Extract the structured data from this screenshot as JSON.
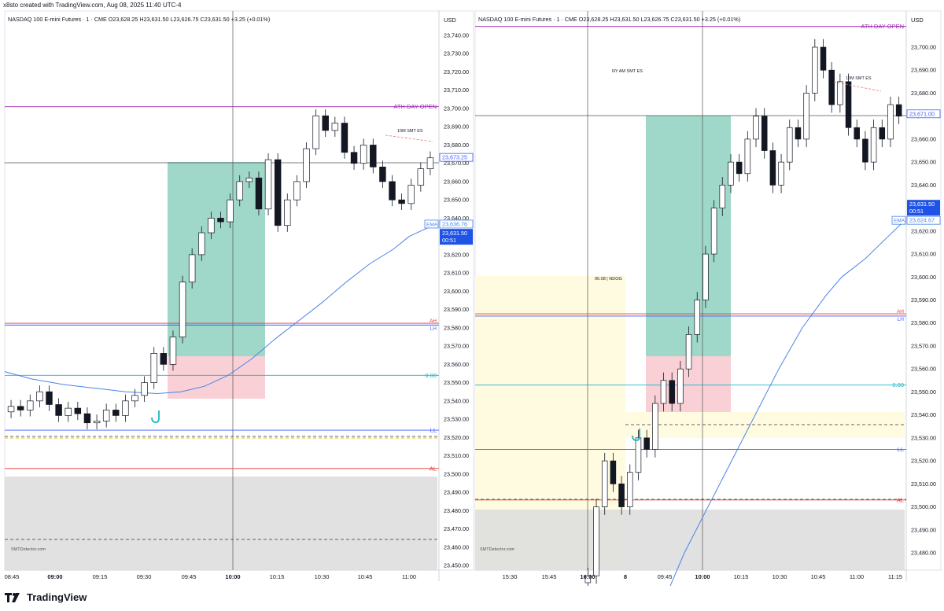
{
  "header_text": "x8sto created with TradingView.com, Aug 08, 2025 11:40 UTC-4",
  "footer_brand": "TradingView",
  "colors": {
    "long_zone": "#7fc9b7",
    "stop_zone": "#f9d0d6",
    "fvg_yellow": "#fffbe0",
    "gray_zone": "#dcdcdc",
    "ema_line": "#4a84e8",
    "zero_line": "#1cb5c9",
    "ll_line": "#3d5afe",
    "al_line": "#e53935",
    "candle_up": "#131722",
    "candle_down": "#131722",
    "last_price_bg": "#1e53e5"
  },
  "chart_data": [
    {
      "type": "candlestick",
      "title": "NASDAQ 100 E-mini Futures · 1 · CME",
      "ohlc_text": "O23,628.25  H23,631.50  L23,626.75  C23,631.50  +3.25 (+0.01%)",
      "currency": "USD",
      "x_ticks": [
        "08:45",
        "09:00",
        "09:15",
        "09:30",
        "09:45",
        "10:00",
        "10:15",
        "10:30",
        "10:45",
        "11:00"
      ],
      "x_ticks_bold": [
        "09:00",
        "10:00"
      ],
      "y_ticks": [
        "23,740.00",
        "23,730.00",
        "23,720.00",
        "23,710.00",
        "23,700.00",
        "23,690.00",
        "23,680.00",
        "23,670.00",
        "23,660.00",
        "23,650.00",
        "23,640.00",
        "23,630.00",
        "23,620.00",
        "23,610.00",
        "23,600.00",
        "23,590.00",
        "23,580.00",
        "23,570.00",
        "23,560.00",
        "23,550.00",
        "23,540.00",
        "23,530.00",
        "23,520.00",
        "23,510.00",
        "23,500.00",
        "23,490.00",
        "23,480.00",
        "23,470.00",
        "23,460.00",
        "23,450.00"
      ],
      "ylim": [
        23447,
        23745
      ],
      "levels": [
        {
          "label": "ATH DAY OPEN",
          "value": 23701,
          "color": "#9c27b0"
        },
        {
          "label": "AH",
          "value": 23582.5,
          "color": "#e53935"
        },
        {
          "label": "LH",
          "value": 23581.5,
          "color": "#3d5afe"
        },
        {
          "label": "0.00",
          "value": 23554,
          "color": "#1cb5c9"
        },
        {
          "label": "LL",
          "value": 23524,
          "color": "#3d5afe"
        },
        {
          "label": "AL",
          "value": 23503,
          "color": "#e53935"
        }
      ],
      "price_badges": [
        {
          "label": "23,673.25",
          "value": 23673.25
        },
        {
          "label": "EMA",
          "text": "23,636.76",
          "value": 23636.76
        },
        {
          "label": "23,631.50",
          "sub": "00:51",
          "value": 23631.5
        }
      ],
      "annotations": [
        "10M SMT ES",
        "SMTDetector.com"
      ],
      "ema_values": [
        23556,
        23552,
        23549,
        23547,
        23545,
        23544,
        23545,
        23548,
        23554,
        23563,
        23574,
        23584,
        23594,
        23605,
        23615,
        23623,
        23630,
        23634,
        23636.76
      ],
      "candles_close": [
        23537,
        23535,
        23540,
        23545,
        23538,
        23532,
        23536,
        23533,
        23528,
        23529,
        23535,
        23532,
        23540,
        23543,
        23550,
        23566,
        23560,
        23575,
        23605,
        23620,
        23632,
        23640,
        23638,
        23650,
        23660,
        23662,
        23645,
        23672,
        23636,
        23650,
        23660,
        23678,
        23696,
        23688,
        23692,
        23676,
        23670,
        23680,
        23668,
        23660,
        23650,
        23648,
        23658,
        23667,
        23673
      ]
    },
    {
      "type": "candlestick",
      "title": "NASDAQ 100 E-mini Futures · 1 · CME",
      "ohlc_text": "O23,628.25  H23,631.50  L23,626.75  C23,631.50  +3.25 (+0.01%)",
      "currency": "USD",
      "x_ticks": [
        "15:30",
        "15:45",
        "16:00",
        "8",
        "09:45",
        "10:00",
        "10:15",
        "10:30",
        "10:45",
        "11:00",
        "11:15"
      ],
      "x_ticks_bold": [
        "16:00",
        "8",
        "10:00"
      ],
      "y_ticks": [
        "23,700.00",
        "23,690.00",
        "23,680.00",
        "23,670.00",
        "23,660.00",
        "23,650.00",
        "23,640.00",
        "23,630.00",
        "23,620.00",
        "23,610.00",
        "23,600.00",
        "23,590.00",
        "23,580.00",
        "23,570.00",
        "23,560.00",
        "23,550.00",
        "23,540.00",
        "23,530.00",
        "23,520.00",
        "23,510.00",
        "23,500.00",
        "23,490.00",
        "23,480.00"
      ],
      "ylim": [
        23469,
        23712
      ],
      "levels": [
        {
          "label": "ATH DAY OPEN",
          "value": 23709,
          "color": "#9c27b0"
        },
        {
          "label": "AH",
          "value": 23584,
          "color": "#e53935"
        },
        {
          "label": "LH",
          "value": 23583,
          "color": "#3d5afe"
        },
        {
          "label": "0.00",
          "value": 23553,
          "color": "#1cb5c9"
        },
        {
          "label": "LL",
          "value": 23525,
          "color": "#3d5afe"
        },
        {
          "label": "AL",
          "value": 23503,
          "color": "#e53935"
        }
      ],
      "price_badges": [
        {
          "label": "23,671.00",
          "value": 23671
        },
        {
          "label": "23,631.50",
          "sub": "00:51",
          "value": 23631.5
        },
        {
          "label": "EMA",
          "text": "23,624.67",
          "value": 23624.67
        }
      ],
      "annotations": [
        "NY AM SMT ES",
        "10M SMT ES",
        "06.08 | NDOG",
        "SMTDetector.com"
      ],
      "ema_values": [
        23460,
        23480,
        23500,
        23520,
        23540,
        23560,
        23578,
        23592,
        23600,
        23608,
        23618,
        23624.67
      ],
      "candles_close": [
        23470,
        23500,
        23520,
        23510,
        23500,
        23515,
        23530,
        23525,
        23545,
        23555,
        23545,
        23560,
        23575,
        23590,
        23610,
        23630,
        23640,
        23650,
        23645,
        23660,
        23670,
        23655,
        23640,
        23650,
        23665,
        23660,
        23680,
        23700,
        23690,
        23675,
        23685,
        23665,
        23660,
        23650,
        23665,
        23660,
        23675,
        23670
      ]
    }
  ]
}
